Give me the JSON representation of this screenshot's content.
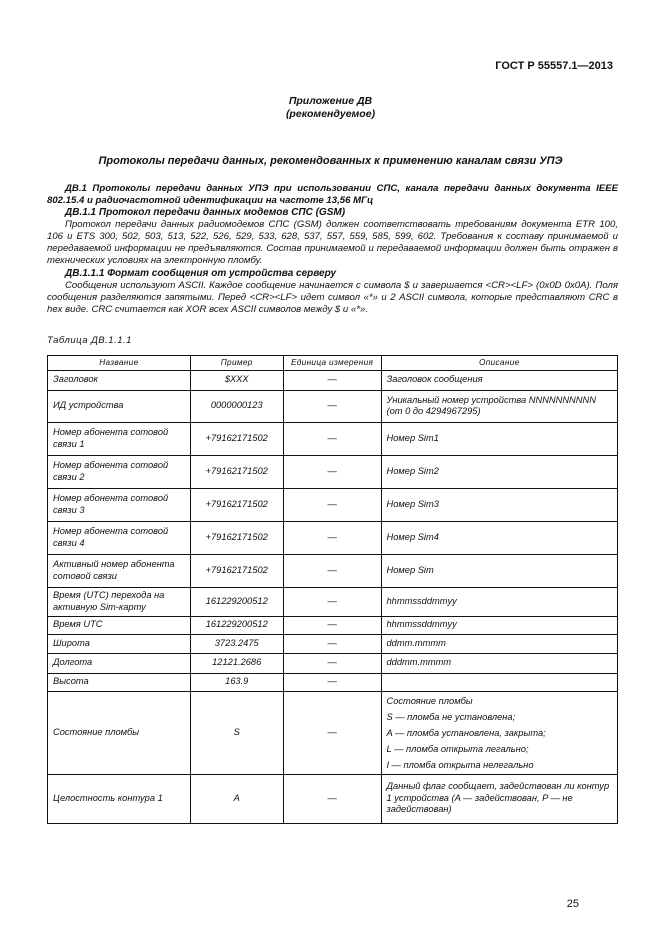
{
  "header": {
    "standard": "ГОСТ Р 55557.1—2013"
  },
  "appendix": {
    "title": "Приложение ДВ",
    "subtitle": "(рекомендуемое)"
  },
  "doc_title": "Протоколы передачи данных, рекомендованных к применению каналам связи УПЭ",
  "sections": [
    {
      "type": "b",
      "text": "ДВ.1 Протоколы передачи данных УПЭ при использовании СПС, канала передачи данных документа IEEE 802.15.4 и радиочастотной идентификации на частоте 13,56 МГц"
    },
    {
      "type": "h",
      "text": "ДВ.1.1 Протокол передачи данных модемов СПС (GSM)"
    },
    {
      "type": "p",
      "text": "Протокол передачи данных радиомодемов СПС (GSM) должен соответствовать требованиям документа ETR 100, 106 и ETS 300, 502, 503, 513, 522, 526, 529, 533, 628, 537, 557, 559, 585, 599, 602. Требования к составу принимаемой и передаваемой информации не предъявляются. Состав принимаемой и передаваемой информации должен быть отражен в технических условиях на электронную пломбу."
    },
    {
      "type": "h",
      "text": "ДВ.1.1.1 Формат сообщения от устройства серверу"
    },
    {
      "type": "p",
      "text": "Сообщения используют ASCII. Каждое сообщение начинается с символа $ и завершается <CR><LF> (0x0D 0x0A). Поля сообщения разделяются запятыми. Перед <CR><LF> идет символ «*» и 2 ASCII символа, которые представляют CRC в hex виде. CRC считается как XOR всех ASCII символов между $ и «*»."
    }
  ],
  "table": {
    "caption": "Таблица ДВ.1.1.1",
    "columns": [
      "Название",
      "Пример",
      "Единица измерения",
      "Описание"
    ],
    "rows": [
      {
        "name": "Заголовок",
        "example": "$XXX",
        "unit": "—",
        "desc": [
          "Заголовок сообщения"
        ]
      },
      {
        "name": "ИД устройства",
        "example": "0000000123",
        "unit": "—",
        "desc": [
          "Уникальный номер устройства NNNNNNNNNN (от 0 до 4294967295)"
        ]
      },
      {
        "name": "Номер абонента сотовой связи 1",
        "example": "+79162171502",
        "unit": "—",
        "desc": [
          "Номер Sim1"
        ]
      },
      {
        "name": "Номер абонента сотовой связи 2",
        "example": "+79162171502",
        "unit": "—",
        "desc": [
          "Номер Sim2"
        ]
      },
      {
        "name": "Номер абонента сотовой связи 3",
        "example": "+79162171502",
        "unit": "—",
        "desc": [
          "Номер Sim3"
        ]
      },
      {
        "name": "Номер абонента сотовой связи 4",
        "example": "+79162171502",
        "unit": "—",
        "desc": [
          "Номер Sim4"
        ]
      },
      {
        "name": "Активный номер абонента сотовой связи",
        "example": "+79162171502",
        "unit": "—",
        "desc": [
          "Номер Sim"
        ]
      },
      {
        "name": "Время (UTC) перехода на активную Sim-карту",
        "example": "161229200512",
        "unit": "—",
        "desc": [
          "hhmmssddmmyy"
        ]
      },
      {
        "name": "Время UTC",
        "example": "161229200512",
        "unit": "—",
        "desc": [
          "hhmmssddmmyy"
        ]
      },
      {
        "name": "Широта",
        "example": "3723.2475",
        "unit": "—",
        "desc": [
          "ddmm.mmmm"
        ]
      },
      {
        "name": "Долгота",
        "example": "12121.2686",
        "unit": "—",
        "desc": [
          "dddmm.mmmm"
        ]
      },
      {
        "name": "Высота",
        "example": "163.9",
        "unit": "—",
        "desc": []
      },
      {
        "name": "Состояние пломбы",
        "example": "S",
        "unit": "—",
        "desc": [
          "Состояние пломбы",
          "S — пломба не установлена;",
          "A — пломба установлена, закрыта;",
          "L — пломба открыта легально;",
          "I — пломба открыта нелегально"
        ]
      },
      {
        "name": "Целостность контура 1",
        "example": "A",
        "unit": "—",
        "desc": [
          "Данный флаг сообщает, задействован ли контур 1 устройства (A — задействован, P — не задействован)"
        ]
      }
    ]
  },
  "page_number": "25"
}
